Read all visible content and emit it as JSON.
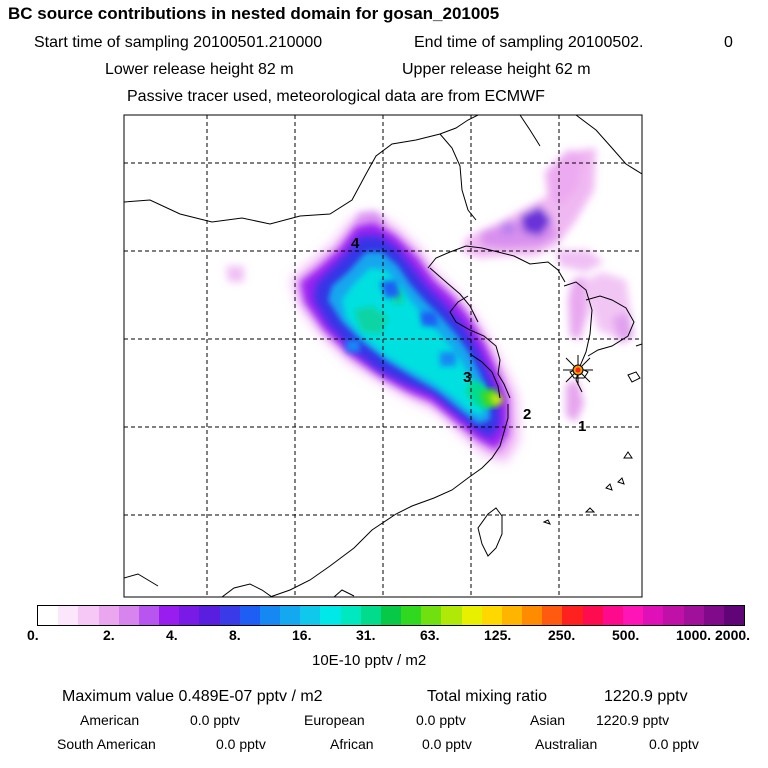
{
  "header": {
    "title": "BC  source contributions in nested domain for gosan_201005",
    "start_label": "Start time of sampling 20100501.210000",
    "end_label": "End time of sampling 20100502.",
    "end_value": "0",
    "lower_release": "Lower release height   82 m",
    "upper_release": "Upper release height   62 m",
    "tracer_note": "Passive tracer used, meteorological data are from ECMWF"
  },
  "map": {
    "receptor": "gosan",
    "source_labels": [
      "1",
      "2",
      "3",
      "4"
    ]
  },
  "colorbar": {
    "colors": [
      "#ffffff",
      "#fce6fc",
      "#f5c8f5",
      "#eaa6ee",
      "#d884ee",
      "#b855f0",
      "#9a1df0",
      "#7a1ae6",
      "#5a1ee0",
      "#3a3ae8",
      "#1e5ef4",
      "#1688f4",
      "#14a8f0",
      "#10c8ec",
      "#00e8e8",
      "#00e8c0",
      "#00dc8c",
      "#08c848",
      "#30d820",
      "#70e010",
      "#b0e808",
      "#e8f000",
      "#ffd800",
      "#ffb400",
      "#ff8c00",
      "#ff5a10",
      "#ff2020",
      "#ff0c50",
      "#ff0a8c",
      "#ff14b8",
      "#e010b8",
      "#c010a8",
      "#a0109a",
      "#800a8a",
      "#600478"
    ],
    "tick_labels": [
      "0.",
      "2.",
      "4.",
      "8.",
      "16.",
      "31.",
      "63.",
      "125.",
      "250.",
      "500.",
      "1000.",
      "2000."
    ],
    "unit_label": "10E-10 pptv / m2"
  },
  "stats": {
    "max_label": "Maximum value  0.489E-07 pptv / m2",
    "total_label": "Total mixing ratio",
    "total_value": "1220.9 pptv",
    "regions": [
      {
        "name": "American",
        "value": "0.0 pptv"
      },
      {
        "name": "European",
        "value": "0.0 pptv"
      },
      {
        "name": "Asian",
        "value": "1220.9 pptv"
      },
      {
        "name": "South American",
        "value": "0.0 pptv"
      },
      {
        "name": "African",
        "value": "0.0 pptv"
      },
      {
        "name": "Australian",
        "value": "0.0 pptv"
      }
    ]
  }
}
